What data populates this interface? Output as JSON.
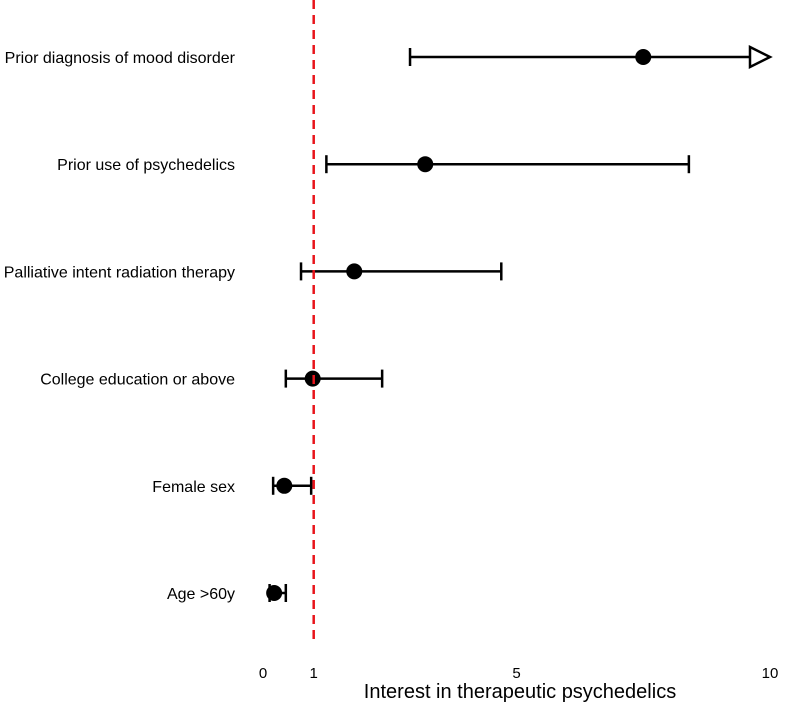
{
  "chart_data": {
    "type": "forest",
    "xlabel": "Interest in therapeutic psychedelics",
    "xlim": [
      0,
      10
    ],
    "x_ticks": [
      "0",
      "1",
      "5",
      "10"
    ],
    "reference_line": {
      "x": 1,
      "style": "dashed",
      "color": "#e8141b"
    },
    "marker_color": "#000000",
    "rows": [
      {
        "label": "Prior diagnosis of mood disorder",
        "estimate": 7.5,
        "lower": 2.9,
        "upper": 10,
        "upper_truncated": true
      },
      {
        "label": "Prior use of psychedelics",
        "estimate": 3.2,
        "lower": 1.25,
        "upper": 8.4,
        "upper_truncated": false
      },
      {
        "label": "Palliative intent radiation therapy",
        "estimate": 1.8,
        "lower": 0.75,
        "upper": 4.7,
        "upper_truncated": false
      },
      {
        "label": "College education or above",
        "estimate": 0.98,
        "lower": 0.45,
        "upper": 2.35,
        "upper_truncated": false
      },
      {
        "label": "Female sex",
        "estimate": 0.42,
        "lower": 0.2,
        "upper": 0.95,
        "upper_truncated": false
      },
      {
        "label": "Age >60y",
        "estimate": 0.22,
        "lower": 0.13,
        "upper": 0.45,
        "upper_truncated": false
      }
    ]
  }
}
